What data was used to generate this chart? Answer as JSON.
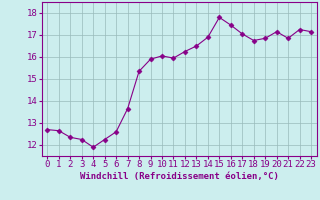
{
  "x": [
    0,
    1,
    2,
    3,
    4,
    5,
    6,
    7,
    8,
    9,
    10,
    11,
    12,
    13,
    14,
    15,
    16,
    17,
    18,
    19,
    20,
    21,
    22,
    23
  ],
  "y": [
    12.7,
    12.65,
    12.35,
    12.25,
    11.9,
    12.25,
    12.6,
    13.65,
    15.35,
    15.9,
    16.05,
    15.95,
    16.25,
    16.5,
    16.9,
    17.8,
    17.45,
    17.05,
    16.75,
    16.85,
    17.15,
    16.85,
    17.25,
    17.15
  ],
  "line_color": "#880088",
  "marker": "D",
  "marker_size": 2.5,
  "bg_color": "#cceeee",
  "grid_color": "#99bbbb",
  "xlabel": "Windchill (Refroidissement éolien,°C)",
  "ylabel_ticks": [
    12,
    13,
    14,
    15,
    16,
    17,
    18
  ],
  "xtick_labels": [
    "0",
    "1",
    "2",
    "3",
    "4",
    "5",
    "6",
    "7",
    "8",
    "9",
    "10",
    "11",
    "12",
    "13",
    "14",
    "15",
    "16",
    "17",
    "18",
    "19",
    "20",
    "21",
    "22",
    "23"
  ],
  "ylim": [
    11.5,
    18.5
  ],
  "xlim": [
    -0.5,
    23.5
  ],
  "xlabel_fontsize": 6.5,
  "tick_fontsize": 6.5,
  "axis_color": "#880088"
}
